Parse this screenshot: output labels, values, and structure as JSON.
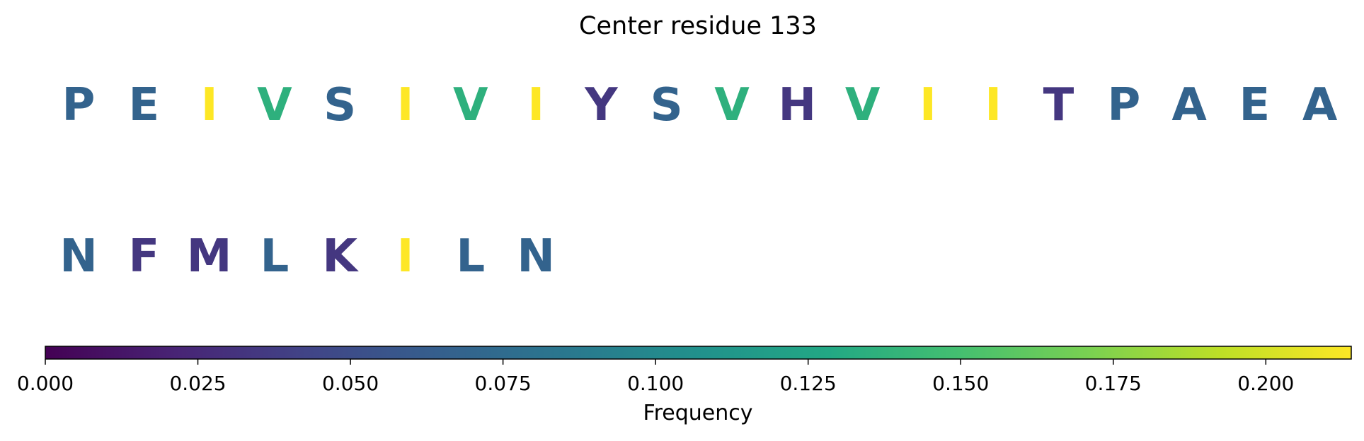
{
  "chart_data": {
    "type": "heatmap",
    "title": "Center residue 133",
    "colormap": "viridis",
    "rows": [
      {
        "residues": [
          {
            "letter": "P",
            "frequency": 0.068
          },
          {
            "letter": "E",
            "frequency": 0.068
          },
          {
            "letter": "I",
            "frequency": 0.214
          },
          {
            "letter": "V",
            "frequency": 0.136
          },
          {
            "letter": "S",
            "frequency": 0.068
          },
          {
            "letter": "I",
            "frequency": 0.214
          },
          {
            "letter": "V",
            "frequency": 0.136
          },
          {
            "letter": "I",
            "frequency": 0.214
          },
          {
            "letter": "Y",
            "frequency": 0.034
          },
          {
            "letter": "S",
            "frequency": 0.068
          },
          {
            "letter": "V",
            "frequency": 0.136
          },
          {
            "letter": "H",
            "frequency": 0.034
          },
          {
            "letter": "V",
            "frequency": 0.136
          },
          {
            "letter": "I",
            "frequency": 0.214
          },
          {
            "letter": "I",
            "frequency": 0.214
          },
          {
            "letter": "T",
            "frequency": 0.034
          },
          {
            "letter": "P",
            "frequency": 0.068
          },
          {
            "letter": "A",
            "frequency": 0.068
          },
          {
            "letter": "E",
            "frequency": 0.068
          },
          {
            "letter": "A",
            "frequency": 0.068
          }
        ]
      },
      {
        "residues": [
          {
            "letter": "N",
            "frequency": 0.068
          },
          {
            "letter": "F",
            "frequency": 0.034
          },
          {
            "letter": "M",
            "frequency": 0.034
          },
          {
            "letter": "L",
            "frequency": 0.068
          },
          {
            "letter": "K",
            "frequency": 0.034
          },
          {
            "letter": "I",
            "frequency": 0.214
          },
          {
            "letter": "L",
            "frequency": 0.068
          },
          {
            "letter": "N",
            "frequency": 0.068
          }
        ]
      }
    ],
    "colorbar": {
      "label": "Frequency",
      "range": [
        0,
        0.214
      ],
      "ticks": [
        0.0,
        0.025,
        0.05,
        0.075,
        0.1,
        0.125,
        0.15,
        0.175,
        0.2
      ],
      "tick_labels": [
        "0.000",
        "0.025",
        "0.050",
        "0.075",
        "0.100",
        "0.125",
        "0.150",
        "0.175",
        "0.200"
      ],
      "orientation": "horizontal"
    }
  }
}
